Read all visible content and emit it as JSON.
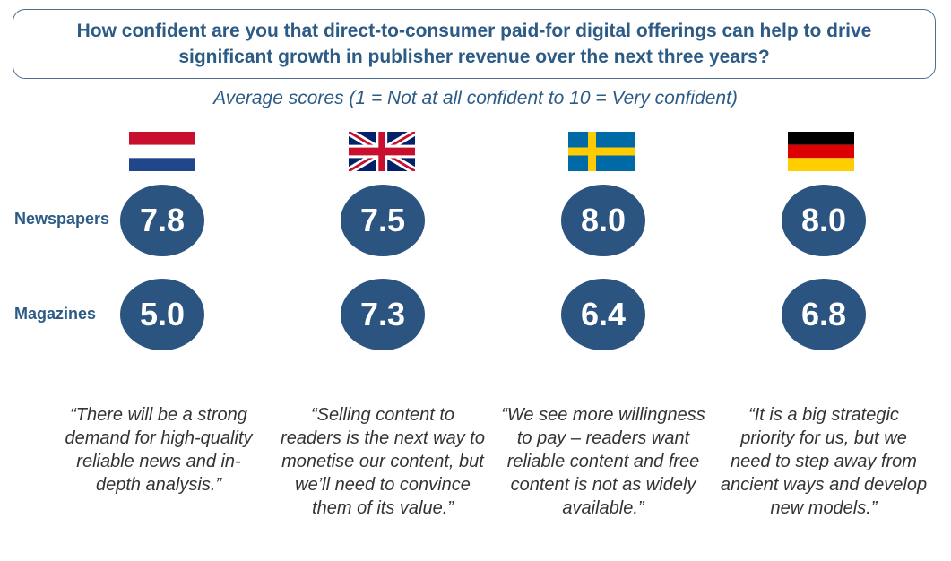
{
  "question": "How confident are you that direct-to-consumer paid-for digital offerings can help to drive significant growth in publisher revenue over the next three years?",
  "subtitle": "Average scores (1 = Not at all confident to 10 = Very confident)",
  "row_labels": {
    "newspapers": "Newspapers",
    "magazines": "Magazines"
  },
  "countries": [
    {
      "flag": "netherlands-flag-icon",
      "newspapers": "7.8",
      "magazines": "5.0",
      "quote": "“There will be a strong demand for high-quality reliable news and in-depth analysis.”"
    },
    {
      "flag": "uk-flag-icon",
      "newspapers": "7.5",
      "magazines": "7.3",
      "quote": "“Selling content to readers is the next way to monetise our content, but we’ll need to convince them of its value.”"
    },
    {
      "flag": "sweden-flag-icon",
      "newspapers": "8.0",
      "magazines": "6.4",
      "quote": "“We see more willingness to pay – readers want reliable content and free content is not as widely available.”"
    },
    {
      "flag": "germany-flag-icon",
      "newspapers": "8.0",
      "magazines": "6.8",
      "quote": "“It is a big strategic priority for us, but we need to step away from ancient ways and develop new models.”"
    }
  ],
  "colors": {
    "accent": "#2c5b86",
    "bubble": "#2b5480",
    "box_border": "#4a6f93"
  },
  "chart_data": {
    "type": "table",
    "title": "How confident are you that direct-to-consumer paid-for digital offerings can help to drive significant growth in publisher revenue over the next three years?",
    "subtitle": "Average scores (1 = Not at all confident to 10 = Very confident)",
    "categories": [
      "netherlands-flag-icon",
      "uk-flag-icon",
      "sweden-flag-icon",
      "germany-flag-icon"
    ],
    "series": [
      {
        "name": "Newspapers",
        "values": [
          7.8,
          7.5,
          8.0,
          8.0
        ]
      },
      {
        "name": "Magazines",
        "values": [
          5.0,
          7.3,
          6.4,
          6.8
        ]
      }
    ]
  }
}
